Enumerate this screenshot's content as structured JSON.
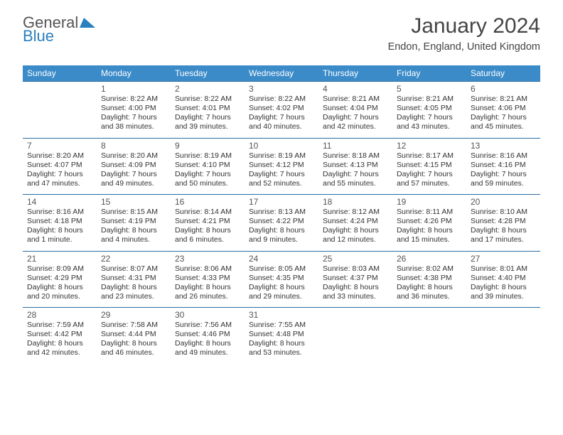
{
  "logo": {
    "word1": "General",
    "word2": "Blue"
  },
  "title": {
    "month": "January 2024",
    "location": "Endon, England, United Kingdom"
  },
  "colors": {
    "header_bg": "#3b8bc9",
    "header_text": "#ffffff",
    "rule": "#2d6fa3",
    "body_text": "#333333",
    "logo_gray": "#555555",
    "logo_blue": "#2b7fbf",
    "page_bg": "#ffffff"
  },
  "day_headers": [
    "Sunday",
    "Monday",
    "Tuesday",
    "Wednesday",
    "Thursday",
    "Friday",
    "Saturday"
  ],
  "weeks": [
    [
      {
        "n": "",
        "lines": []
      },
      {
        "n": "1",
        "lines": [
          "Sunrise: 8:22 AM",
          "Sunset: 4:00 PM",
          "Daylight: 7 hours",
          "and 38 minutes."
        ]
      },
      {
        "n": "2",
        "lines": [
          "Sunrise: 8:22 AM",
          "Sunset: 4:01 PM",
          "Daylight: 7 hours",
          "and 39 minutes."
        ]
      },
      {
        "n": "3",
        "lines": [
          "Sunrise: 8:22 AM",
          "Sunset: 4:02 PM",
          "Daylight: 7 hours",
          "and 40 minutes."
        ]
      },
      {
        "n": "4",
        "lines": [
          "Sunrise: 8:21 AM",
          "Sunset: 4:04 PM",
          "Daylight: 7 hours",
          "and 42 minutes."
        ]
      },
      {
        "n": "5",
        "lines": [
          "Sunrise: 8:21 AM",
          "Sunset: 4:05 PM",
          "Daylight: 7 hours",
          "and 43 minutes."
        ]
      },
      {
        "n": "6",
        "lines": [
          "Sunrise: 8:21 AM",
          "Sunset: 4:06 PM",
          "Daylight: 7 hours",
          "and 45 minutes."
        ]
      }
    ],
    [
      {
        "n": "7",
        "lines": [
          "Sunrise: 8:20 AM",
          "Sunset: 4:07 PM",
          "Daylight: 7 hours",
          "and 47 minutes."
        ]
      },
      {
        "n": "8",
        "lines": [
          "Sunrise: 8:20 AM",
          "Sunset: 4:09 PM",
          "Daylight: 7 hours",
          "and 49 minutes."
        ]
      },
      {
        "n": "9",
        "lines": [
          "Sunrise: 8:19 AM",
          "Sunset: 4:10 PM",
          "Daylight: 7 hours",
          "and 50 minutes."
        ]
      },
      {
        "n": "10",
        "lines": [
          "Sunrise: 8:19 AM",
          "Sunset: 4:12 PM",
          "Daylight: 7 hours",
          "and 52 minutes."
        ]
      },
      {
        "n": "11",
        "lines": [
          "Sunrise: 8:18 AM",
          "Sunset: 4:13 PM",
          "Daylight: 7 hours",
          "and 55 minutes."
        ]
      },
      {
        "n": "12",
        "lines": [
          "Sunrise: 8:17 AM",
          "Sunset: 4:15 PM",
          "Daylight: 7 hours",
          "and 57 minutes."
        ]
      },
      {
        "n": "13",
        "lines": [
          "Sunrise: 8:16 AM",
          "Sunset: 4:16 PM",
          "Daylight: 7 hours",
          "and 59 minutes."
        ]
      }
    ],
    [
      {
        "n": "14",
        "lines": [
          "Sunrise: 8:16 AM",
          "Sunset: 4:18 PM",
          "Daylight: 8 hours",
          "and 1 minute."
        ]
      },
      {
        "n": "15",
        "lines": [
          "Sunrise: 8:15 AM",
          "Sunset: 4:19 PM",
          "Daylight: 8 hours",
          "and 4 minutes."
        ]
      },
      {
        "n": "16",
        "lines": [
          "Sunrise: 8:14 AM",
          "Sunset: 4:21 PM",
          "Daylight: 8 hours",
          "and 6 minutes."
        ]
      },
      {
        "n": "17",
        "lines": [
          "Sunrise: 8:13 AM",
          "Sunset: 4:22 PM",
          "Daylight: 8 hours",
          "and 9 minutes."
        ]
      },
      {
        "n": "18",
        "lines": [
          "Sunrise: 8:12 AM",
          "Sunset: 4:24 PM",
          "Daylight: 8 hours",
          "and 12 minutes."
        ]
      },
      {
        "n": "19",
        "lines": [
          "Sunrise: 8:11 AM",
          "Sunset: 4:26 PM",
          "Daylight: 8 hours",
          "and 15 minutes."
        ]
      },
      {
        "n": "20",
        "lines": [
          "Sunrise: 8:10 AM",
          "Sunset: 4:28 PM",
          "Daylight: 8 hours",
          "and 17 minutes."
        ]
      }
    ],
    [
      {
        "n": "21",
        "lines": [
          "Sunrise: 8:09 AM",
          "Sunset: 4:29 PM",
          "Daylight: 8 hours",
          "and 20 minutes."
        ]
      },
      {
        "n": "22",
        "lines": [
          "Sunrise: 8:07 AM",
          "Sunset: 4:31 PM",
          "Daylight: 8 hours",
          "and 23 minutes."
        ]
      },
      {
        "n": "23",
        "lines": [
          "Sunrise: 8:06 AM",
          "Sunset: 4:33 PM",
          "Daylight: 8 hours",
          "and 26 minutes."
        ]
      },
      {
        "n": "24",
        "lines": [
          "Sunrise: 8:05 AM",
          "Sunset: 4:35 PM",
          "Daylight: 8 hours",
          "and 29 minutes."
        ]
      },
      {
        "n": "25",
        "lines": [
          "Sunrise: 8:03 AM",
          "Sunset: 4:37 PM",
          "Daylight: 8 hours",
          "and 33 minutes."
        ]
      },
      {
        "n": "26",
        "lines": [
          "Sunrise: 8:02 AM",
          "Sunset: 4:38 PM",
          "Daylight: 8 hours",
          "and 36 minutes."
        ]
      },
      {
        "n": "27",
        "lines": [
          "Sunrise: 8:01 AM",
          "Sunset: 4:40 PM",
          "Daylight: 8 hours",
          "and 39 minutes."
        ]
      }
    ],
    [
      {
        "n": "28",
        "lines": [
          "Sunrise: 7:59 AM",
          "Sunset: 4:42 PM",
          "Daylight: 8 hours",
          "and 42 minutes."
        ]
      },
      {
        "n": "29",
        "lines": [
          "Sunrise: 7:58 AM",
          "Sunset: 4:44 PM",
          "Daylight: 8 hours",
          "and 46 minutes."
        ]
      },
      {
        "n": "30",
        "lines": [
          "Sunrise: 7:56 AM",
          "Sunset: 4:46 PM",
          "Daylight: 8 hours",
          "and 49 minutes."
        ]
      },
      {
        "n": "31",
        "lines": [
          "Sunrise: 7:55 AM",
          "Sunset: 4:48 PM",
          "Daylight: 8 hours",
          "and 53 minutes."
        ]
      },
      {
        "n": "",
        "lines": []
      },
      {
        "n": "",
        "lines": []
      },
      {
        "n": "",
        "lines": []
      }
    ]
  ]
}
